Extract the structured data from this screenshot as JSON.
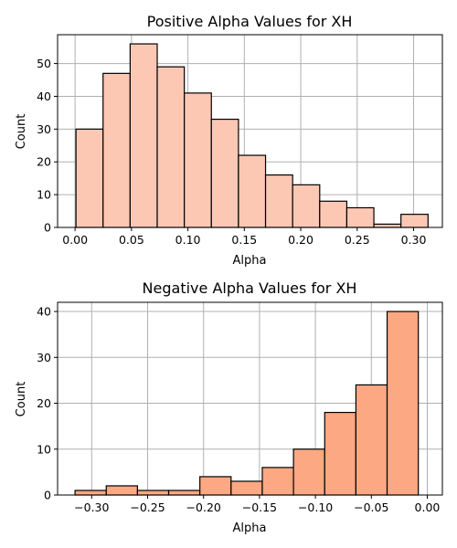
{
  "chart_data": [
    {
      "type": "bar",
      "title": "Positive Alpha Values for XH",
      "xlabel": "Alpha",
      "ylabel": "Count",
      "xlim": [
        -0.0155,
        0.3255
      ],
      "ylim": [
        0,
        58.8
      ],
      "xticks": [
        0.0,
        0.05,
        0.1,
        0.15,
        0.2,
        0.25,
        0.3
      ],
      "xtick_labels": [
        "0.00",
        "0.05",
        "0.10",
        "0.15",
        "0.20",
        "0.25",
        "0.30"
      ],
      "yticks": [
        0,
        10,
        20,
        30,
        40,
        50
      ],
      "ytick_labels": [
        "0",
        "10",
        "20",
        "30",
        "40",
        "50"
      ],
      "grid": true,
      "color": "#fcc8b4",
      "edges": [
        0.0008,
        0.0248,
        0.0488,
        0.0728,
        0.0968,
        0.1208,
        0.1448,
        0.1688,
        0.1928,
        0.2168,
        0.2408,
        0.2648,
        0.2888,
        0.3128
      ],
      "values": [
        30,
        47,
        56,
        49,
        41,
        33,
        22,
        16,
        13,
        8,
        6,
        1,
        4
      ]
    },
    {
      "type": "bar",
      "title": "Negative Alpha Values for XH",
      "xlabel": "Alpha",
      "ylabel": "Count",
      "xlim": [
        -0.3305,
        0.0135
      ],
      "ylim": [
        0,
        42
      ],
      "xticks": [
        -0.3,
        -0.25,
        -0.2,
        -0.15,
        -0.1,
        -0.05,
        0.0
      ],
      "xtick_labels": [
        "−0.30",
        "−0.25",
        "−0.20",
        "−0.15",
        "−0.10",
        "−0.05",
        "0.00"
      ],
      "yticks": [
        0,
        10,
        20,
        30,
        40
      ],
      "ytick_labels": [
        "0",
        "10",
        "20",
        "30",
        "40"
      ],
      "grid": true,
      "color": "#fca883",
      "edges": [
        -0.3149,
        -0.287,
        -0.2591,
        -0.2312,
        -0.2033,
        -0.1754,
        -0.1475,
        -0.1196,
        -0.0917,
        -0.0638,
        -0.0359,
        -0.008
      ],
      "values": [
        1,
        2,
        1,
        1,
        4,
        3,
        6,
        10,
        18,
        24,
        40
      ]
    }
  ]
}
